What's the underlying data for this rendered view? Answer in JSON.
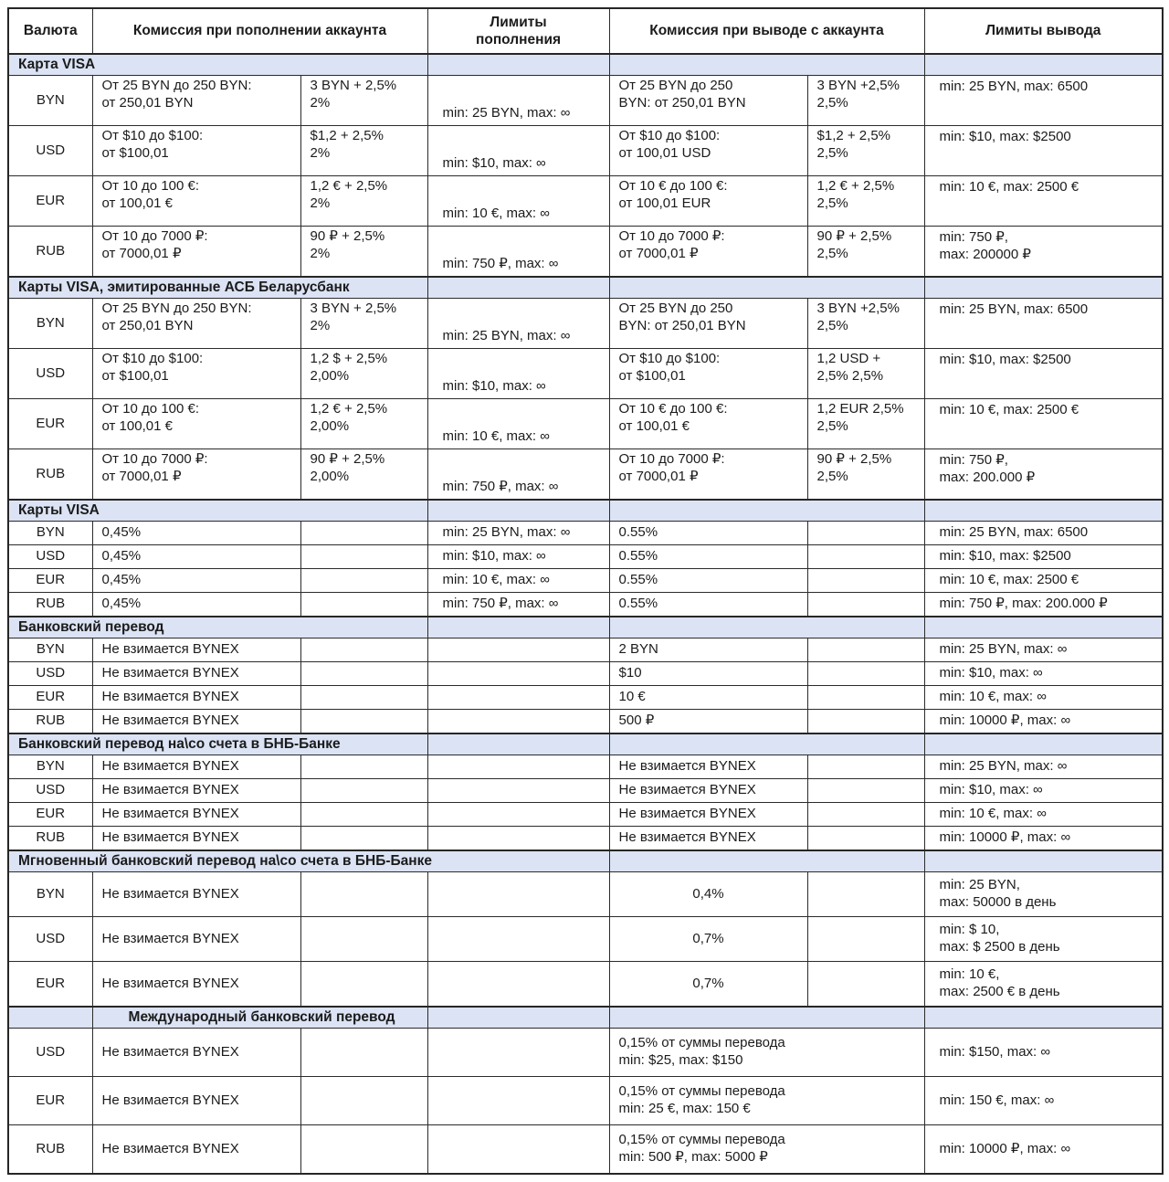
{
  "colors": {
    "section_bg": "#dbe3f4",
    "border": "#262626",
    "text": "#1b1b1b"
  },
  "table": {
    "header": {
      "currency": "Валюта",
      "deposit_commission": "Комиссия при пополнении аккаунта",
      "deposit_limits": "Лимиты\nпополнения",
      "withdraw_commission": "Комиссия при выводе с аккаунта",
      "withdraw_limits": "Лимиты вывода"
    },
    "sections": [
      {
        "title": "Карта VISA",
        "variant": "visa",
        "header_layout": "normal",
        "rows": [
          [
            "BYN",
            "От 25 BYN до 250 BYN:\nот 250,01 BYN",
            "3 BYN + 2,5%\n2%",
            "min: 25 BYN, max: ∞",
            "От 25 BYN до 250\nBYN: от 250,01 BYN",
            "3 BYN +2,5%\n2,5%",
            "min: 25 BYN, max: 6500"
          ],
          [
            "USD",
            "От $10 до $100:\nот $100,01",
            "$1,2 + 2,5%\n2%",
            "min: $10, max: ∞",
            "От $10 до $100:\nот 100,01 USD",
            "$1,2 + 2,5%\n2,5%",
            "min: $10, max: $2500"
          ],
          [
            "EUR",
            "От 10 до 100 €:\nот 100,01 €",
            "1,2 € + 2,5%\n2%",
            "min: 10 €, max: ∞",
            "От 10 € до 100 €:\nот 100,01 EUR",
            "1,2 € + 2,5%\n2,5%",
            "min: 10 €, max: 2500 €"
          ],
          [
            "RUB",
            "От 10 до 7000 ₽:\nот 7000,01 ₽",
            "90 ₽ + 2,5%\n2%",
            "min: 750 ₽, max: ∞",
            "От 10 до 7000 ₽:\nот 7000,01 ₽",
            "90 ₽ + 2,5%\n2,5%",
            "min: 750 ₽,\nmax: 200000 ₽"
          ]
        ]
      },
      {
        "title": "Карты VISA, эмитированные АСБ Беларусбанк",
        "variant": "visa",
        "header_layout": "normal",
        "rows": [
          [
            "BYN",
            "От 25 BYN до 250 BYN:\nот 250,01 BYN",
            "3 BYN + 2,5%\n2%",
            "min: 25 BYN, max: ∞",
            "От 25 BYN до 250\nBYN: от 250,01 BYN",
            "3 BYN +2,5%\n2,5%",
            "min: 25 BYN, max: 6500"
          ],
          [
            "USD",
            "От $10 до $100:\nот $100,01",
            "1,2 $ + 2,5%\n2,00%",
            "min: $10, max: ∞",
            "От $10 до $100:\nот $100,01",
            "1,2 USD +\n2,5% 2,5%",
            "min: $10, max: $2500"
          ],
          [
            "EUR",
            "От 10 до 100 €:\nот 100,01 €",
            "1,2 € + 2,5%\n2,00%",
            "min: 10 €, max: ∞",
            "От 10 € до 100 €:\nот 100,01 €",
            "1,2 EUR 2,5%\n2,5%",
            "min: 10 €, max: 2500 €"
          ],
          [
            "RUB",
            "От 10 до 7000 ₽:\nот 7000,01 ₽",
            "90 ₽ + 2,5%\n2,00%",
            "min: 750 ₽, max: ∞",
            "От 10 до 7000 ₽:\nот 7000,01 ₽",
            "90 ₽ + 2,5%\n2,5%",
            "min: 750 ₽,\nmax: 200.000 ₽"
          ]
        ]
      },
      {
        "title": "Карты VISA",
        "variant": "simple",
        "header_layout": "normal",
        "rows": [
          [
            "BYN",
            "0,45%",
            "",
            "min: 25 BYN, max: ∞",
            "0.55%",
            "",
            "min: 25 BYN, max: 6500"
          ],
          [
            "USD",
            "0,45%",
            "",
            "min: $10, max: ∞",
            "0.55%",
            "",
            "min: $10, max: $2500"
          ],
          [
            "EUR",
            "0,45%",
            "",
            "min: 10 €, max: ∞",
            "0.55%",
            "",
            "min: 10 €, max: 2500 €"
          ],
          [
            "RUB",
            "0,45%",
            "",
            "min: 750 ₽, max: ∞",
            "0.55%",
            "",
            "min: 750 ₽, max: 200.000 ₽"
          ]
        ]
      },
      {
        "title": "Банковский перевод",
        "variant": "simple",
        "header_layout": "normal",
        "rows": [
          [
            "BYN",
            "Не взимается BYNEX",
            "",
            "",
            "2 BYN",
            "",
            "min: 25 BYN, max: ∞"
          ],
          [
            "USD",
            "Не взимается BYNEX",
            "",
            "",
            "$10",
            "",
            "min: $10, max: ∞"
          ],
          [
            "EUR",
            "Не взимается BYNEX",
            "",
            "",
            "10 €",
            "",
            "min: 10 €, max: ∞"
          ],
          [
            "RUB",
            "Не взимается BYNEX",
            "",
            "",
            "500 ₽",
            "",
            "min: 10000 ₽, max: ∞"
          ]
        ]
      },
      {
        "title": "Банковский перевод на\\со счета в БНБ-Банке",
        "variant": "simple",
        "header_layout": "normal",
        "rows": [
          [
            "BYN",
            "Не взимается BYNEX",
            "",
            "",
            "Не взимается BYNEX",
            "",
            "min: 25 BYN, max: ∞"
          ],
          [
            "USD",
            "Не взимается BYNEX",
            "",
            "",
            "Не взимается BYNEX",
            "",
            "min: $10, max: ∞"
          ],
          [
            "EUR",
            "Не взимается BYNEX",
            "",
            "",
            "Не взимается BYNEX",
            "",
            "min: 10 €, max: ∞"
          ],
          [
            "RUB",
            "Не взимается BYNEX",
            "",
            "",
            "Не взимается BYNEX",
            "",
            "min: 10000 ₽, max: ∞"
          ]
        ]
      },
      {
        "title": "Мгновенный банковский перевод на\\со счета в БНБ-Банке",
        "variant": "instant",
        "header_layout": "wide",
        "rows": [
          [
            "BYN",
            "Не взимается BYNEX",
            "",
            "",
            "0,4%",
            "",
            "min: 25 BYN,\nmax: 50000 в день"
          ],
          [
            "USD",
            "Не взимается BYNEX",
            "",
            "",
            "0,7%",
            "",
            "min: $ 10,\nmax: $ 2500 в день"
          ],
          [
            "EUR",
            "Не взимается BYNEX",
            "",
            "",
            "0,7%",
            "",
            "min: 10 €,\nmax: 2500 € в день"
          ]
        ]
      },
      {
        "title": "Международный банковский перевод",
        "variant": "intl",
        "header_layout": "indent",
        "rows": [
          [
            "USD",
            "Не взимается BYNEX",
            "",
            "",
            "0,15% от суммы перевода\nmin: $25, max: $150",
            "min: $150, max: ∞"
          ],
          [
            "EUR",
            "Не взимается BYNEX",
            "",
            "",
            "0,15% от суммы перевода\nmin: 25 €, max: 150 €",
            "min: 150 €, max: ∞"
          ],
          [
            "RUB",
            "Не взимается BYNEX",
            "",
            "",
            "0,15% от суммы перевода\nmin: 500 ₽, max: 5000 ₽",
            "min: 10000 ₽, max: ∞"
          ]
        ]
      }
    ]
  }
}
